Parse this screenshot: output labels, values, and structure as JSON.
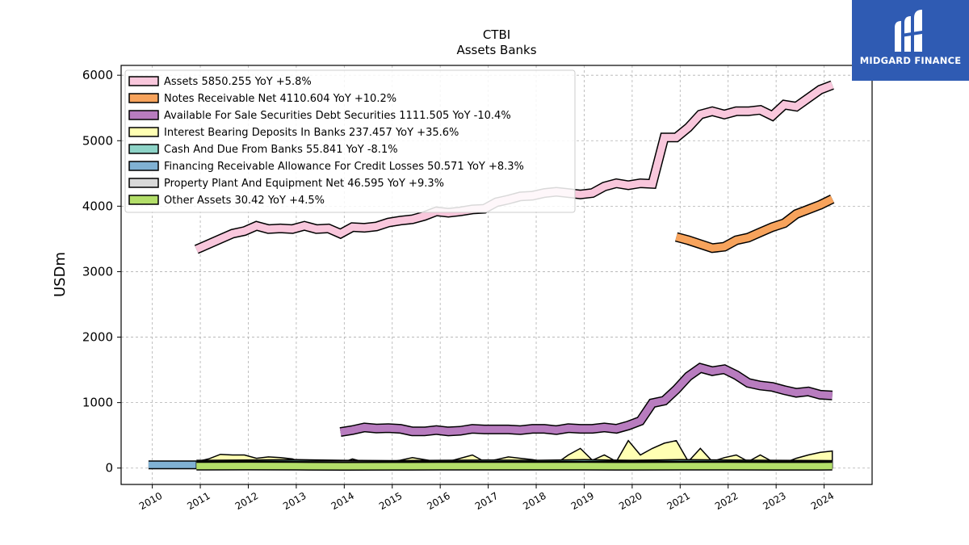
{
  "header": {
    "title": "CTBI",
    "subtitle": "Assets Banks"
  },
  "logo": {
    "text": "MIDGARD FINANCE",
    "background": "#2f5bb3"
  },
  "chart_data": {
    "type": "area",
    "ylabel": "USDm",
    "xlabel": "",
    "ylim": [
      -250,
      6150
    ],
    "xlim": [
      2009.35,
      2025.0
    ],
    "yticks": [
      0,
      1000,
      2000,
      3000,
      4000,
      5000,
      6000
    ],
    "xticks": [
      "2010",
      "2011",
      "2012",
      "2013",
      "2014",
      "2015",
      "2016",
      "2017",
      "2018",
      "2019",
      "2020",
      "2021",
      "2022",
      "2023",
      "2024"
    ],
    "grid": true,
    "legend_position": "top-left",
    "series": [
      {
        "name": "Assets",
        "legend": "Assets  5850.255 YoY +5.8%",
        "color": "#f9c7dc",
        "x": [
          2010.92,
          2011.17,
          2011.42,
          2011.67,
          2011.92,
          2012.17,
          2012.42,
          2012.67,
          2012.92,
          2013.17,
          2013.42,
          2013.67,
          2013.92,
          2014.17,
          2014.42,
          2014.67,
          2014.92,
          2015.17,
          2015.42,
          2015.67,
          2015.92,
          2016.17,
          2016.42,
          2016.67,
          2016.92,
          2017.17,
          2017.42,
          2017.67,
          2017.92,
          2018.17,
          2018.42,
          2018.67,
          2018.92,
          2019.17,
          2019.42,
          2019.67,
          2019.92,
          2020.17,
          2020.42,
          2020.67,
          2020.92,
          2021.17,
          2021.42,
          2021.67,
          2021.92,
          2022.17,
          2022.42,
          2022.67,
          2022.92,
          2023.17,
          2023.42,
          2023.67,
          2023.92,
          2024.17
        ],
        "values": [
          3340,
          3420,
          3500,
          3580,
          3620,
          3700,
          3650,
          3660,
          3650,
          3700,
          3650,
          3660,
          3580,
          3680,
          3670,
          3690,
          3750,
          3780,
          3800,
          3850,
          3920,
          3900,
          3920,
          3950,
          3960,
          4060,
          4100,
          4150,
          4160,
          4200,
          4220,
          4200,
          4180,
          4200,
          4300,
          4350,
          4320,
          4350,
          4340,
          5050,
          5050,
          5200,
          5400,
          5450,
          5400,
          5450,
          5450,
          5470,
          5380,
          5550,
          5520,
          5650,
          5780,
          5850
        ]
      },
      {
        "name": "Notes Receivable Net",
        "legend": "Notes Receivable Net  4110.604 YoY +10.2%",
        "color": "#f7a35c",
        "x": [
          2020.92,
          2021.17,
          2021.42,
          2021.67,
          2021.92,
          2022.17,
          2022.42,
          2022.67,
          2022.92,
          2023.17,
          2023.42,
          2023.67,
          2023.92,
          2024.17
        ],
        "values": [
          3530,
          3480,
          3420,
          3360,
          3380,
          3480,
          3520,
          3600,
          3680,
          3740,
          3880,
          3950,
          4020,
          4110
        ]
      },
      {
        "name": "Available For Sale Securities Debt Securities",
        "legend": "Available For Sale Securities Debt Securities  1111.505 YoY -10.4%",
        "color": "#b87cbf",
        "x": [
          2013.92,
          2014.17,
          2014.42,
          2014.67,
          2014.92,
          2015.17,
          2015.42,
          2015.67,
          2015.92,
          2016.17,
          2016.42,
          2016.67,
          2016.92,
          2017.17,
          2017.42,
          2017.67,
          2017.92,
          2018.17,
          2018.42,
          2018.67,
          2018.92,
          2019.17,
          2019.42,
          2019.67,
          2019.92,
          2020.17,
          2020.42,
          2020.67,
          2020.92,
          2021.17,
          2021.42,
          2021.67,
          2021.92,
          2022.17,
          2022.42,
          2022.67,
          2022.92,
          2023.17,
          2023.42,
          2023.67,
          2023.92,
          2024.17
        ],
        "values": [
          550,
          580,
          620,
          605,
          610,
          600,
          560,
          560,
          580,
          560,
          570,
          600,
          590,
          590,
          590,
          580,
          600,
          600,
          580,
          610,
          600,
          600,
          620,
          600,
          650,
          720,
          990,
          1030,
          1200,
          1400,
          1530,
          1480,
          1510,
          1420,
          1300,
          1260,
          1240,
          1190,
          1150,
          1170,
          1120,
          1110
        ]
      },
      {
        "name": "Interest Bearing Deposits In Banks",
        "legend": "Interest Bearing Deposits In Banks  237.457 YoY +35.6%",
        "color": "#ffffb3",
        "x": [
          2010.92,
          2011.17,
          2011.42,
          2011.67,
          2011.92,
          2012.17,
          2012.42,
          2012.67,
          2012.92,
          2013.17,
          2013.42,
          2013.67,
          2013.92,
          2014.17,
          2014.42,
          2014.67,
          2014.92,
          2015.17,
          2015.42,
          2015.67,
          2015.92,
          2016.17,
          2016.42,
          2016.67,
          2016.92,
          2017.17,
          2017.42,
          2017.67,
          2017.92,
          2018.17,
          2018.42,
          2018.67,
          2018.92,
          2019.17,
          2019.42,
          2019.67,
          2019.92,
          2020.17,
          2020.42,
          2020.67,
          2020.92,
          2021.17,
          2021.42,
          2021.67,
          2021.92,
          2022.17,
          2022.42,
          2022.67,
          2022.92,
          2023.17,
          2023.42,
          2023.67,
          2023.92,
          2024.17
        ],
        "values": [
          100,
          140,
          210,
          200,
          200,
          150,
          170,
          160,
          140,
          80,
          60,
          70,
          70,
          140,
          90,
          80,
          90,
          120,
          160,
          130,
          100,
          100,
          150,
          200,
          100,
          130,
          170,
          150,
          130,
          100,
          70,
          200,
          300,
          120,
          200,
          100,
          420,
          200,
          300,
          380,
          420,
          100,
          300,
          100,
          160,
          200,
          100,
          200,
          100,
          80,
          150,
          200,
          240,
          260
        ]
      },
      {
        "name": "Cash And Due From Banks",
        "legend": "Cash And Due From Banks  55.841 YoY -8.1%",
        "color": "#8dd3c7",
        "x": [
          2010.92,
          2012.0,
          2013.0,
          2014.0,
          2015.0,
          2016.0,
          2017.0,
          2018.0,
          2019.0,
          2020.0,
          2021.0,
          2022.0,
          2023.0,
          2024.17
        ],
        "values": [
          60,
          65,
          70,
          60,
          55,
          60,
          65,
          60,
          70,
          60,
          70,
          65,
          60,
          56
        ]
      },
      {
        "name": "Financing Receivable Allowance For Credit Losses",
        "legend": "Financing Receivable Allowance For Credit Losses  50.571 YoY +8.3%",
        "color": "#80b1d3",
        "x": [
          2009.92,
          2010.92
        ],
        "values": [
          50,
          50
        ]
      },
      {
        "name": "Property Plant And Equipment Net",
        "legend": "Property Plant And Equipment Net  46.595 YoY +9.3%",
        "color": "#d9d9d9",
        "x": [
          2010.92,
          2012.0,
          2013.0,
          2014.0,
          2015.0,
          2016.0,
          2017.0,
          2018.0,
          2019.0,
          2020.0,
          2021.0,
          2022.0,
          2023.0,
          2024.17
        ],
        "values": [
          45,
          46,
          47,
          48,
          46,
          45,
          44,
          44,
          45,
          46,
          46,
          45,
          45,
          47
        ]
      },
      {
        "name": "Other Assets",
        "legend": "Other Assets  30.42 YoY +4.5%",
        "color": "#b3de69",
        "x": [
          2010.92,
          2012.0,
          2013.0,
          2014.0,
          2015.0,
          2016.0,
          2017.0,
          2018.0,
          2019.0,
          2020.0,
          2021.0,
          2022.0,
          2023.0,
          2024.17
        ],
        "values": [
          30,
          32,
          30,
          28,
          29,
          30,
          31,
          30,
          31,
          29,
          30,
          30,
          29,
          30
        ]
      }
    ]
  }
}
